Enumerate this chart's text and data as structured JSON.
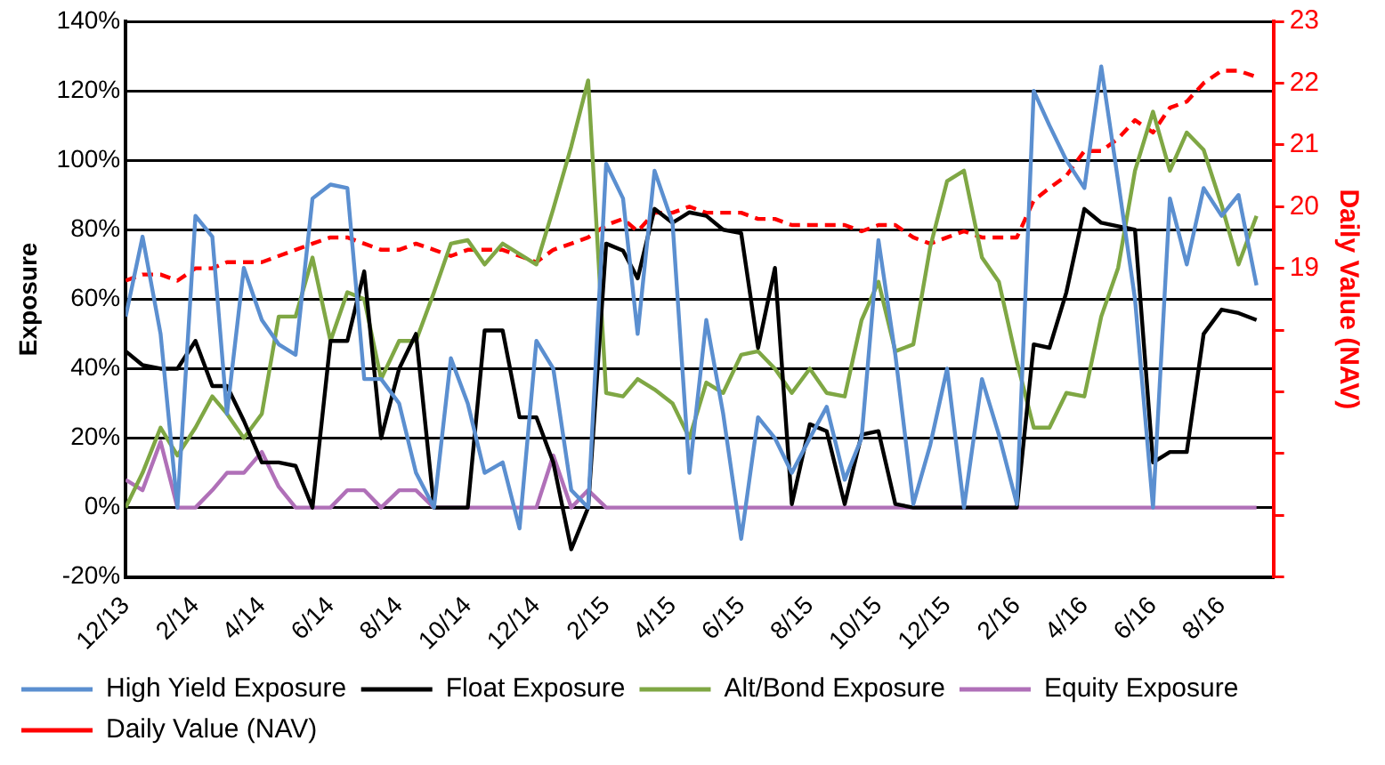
{
  "chart_data": {
    "type": "line",
    "ylabel": "Exposure",
    "y2label": "Daily Value (NAV)",
    "marker": "none",
    "grid": "y",
    "legend": "bottom",
    "x": [
      "2013-12-01",
      "2013-12-16",
      "2014-01-01",
      "2014-01-16",
      "2014-02-01",
      "2014-02-16",
      "2014-03-01",
      "2014-03-16",
      "2014-04-01",
      "2014-04-16",
      "2014-05-01",
      "2014-05-16",
      "2014-06-01",
      "2014-06-16",
      "2014-07-01",
      "2014-07-16",
      "2014-08-01",
      "2014-08-16",
      "2014-09-01",
      "2014-09-16",
      "2014-10-01",
      "2014-10-16",
      "2014-11-01",
      "2014-11-16",
      "2014-12-01",
      "2014-12-16",
      "2015-01-01",
      "2015-01-16",
      "2015-02-01",
      "2015-02-16",
      "2015-03-01",
      "2015-03-16",
      "2015-04-01",
      "2015-04-16",
      "2015-05-01",
      "2015-05-16",
      "2015-06-01",
      "2015-06-16",
      "2015-07-01",
      "2015-07-16",
      "2015-08-01",
      "2015-08-16",
      "2015-09-01",
      "2015-09-16",
      "2015-10-01",
      "2015-10-16",
      "2015-11-01",
      "2015-11-16",
      "2015-12-01",
      "2015-12-16",
      "2016-01-01",
      "2016-01-16",
      "2016-02-01",
      "2016-02-16",
      "2016-03-01",
      "2016-03-16",
      "2016-04-01",
      "2016-04-16",
      "2016-05-01",
      "2016-05-16",
      "2016-06-01",
      "2016-06-16",
      "2016-07-01",
      "2016-07-16",
      "2016-08-01",
      "2016-08-16",
      "2016-09-01"
    ],
    "xlim": [
      "2013-12-01",
      "2016-09-16"
    ],
    "xticks": [
      {
        "value": "2013-12-01",
        "label": "12/13"
      },
      {
        "value": "2014-02-01",
        "label": "2/14"
      },
      {
        "value": "2014-04-01",
        "label": "4/14"
      },
      {
        "value": "2014-06-01",
        "label": "6/14"
      },
      {
        "value": "2014-08-01",
        "label": "8/14"
      },
      {
        "value": "2014-10-01",
        "label": "10/14"
      },
      {
        "value": "2014-12-01",
        "label": "12/14"
      },
      {
        "value": "2015-02-01",
        "label": "2/15"
      },
      {
        "value": "2015-04-01",
        "label": "4/15"
      },
      {
        "value": "2015-06-01",
        "label": "6/15"
      },
      {
        "value": "2015-08-01",
        "label": "8/15"
      },
      {
        "value": "2015-10-01",
        "label": "10/15"
      },
      {
        "value": "2015-12-01",
        "label": "12/15"
      },
      {
        "value": "2016-02-01",
        "label": "2/16"
      },
      {
        "value": "2016-04-01",
        "label": "4/16"
      },
      {
        "value": "2016-06-01",
        "label": "6/16"
      },
      {
        "value": "2016-08-01",
        "label": "8/16"
      }
    ],
    "ylim": [
      -20,
      140
    ],
    "yticks": [
      {
        "value": -20,
        "label": "-20%"
      },
      {
        "value": 0,
        "label": "0%"
      },
      {
        "value": 20,
        "label": "20%"
      },
      {
        "value": 40,
        "label": "40%"
      },
      {
        "value": 60,
        "label": "60%"
      },
      {
        "value": 80,
        "label": "80%"
      },
      {
        "value": 100,
        "label": "100%"
      },
      {
        "value": 120,
        "label": "120%"
      },
      {
        "value": 140,
        "label": "140%"
      }
    ],
    "y2lim": [
      14,
      23
    ],
    "y2ticks": [
      {
        "value": 14,
        "label": null
      },
      {
        "value": 15,
        "label": null
      },
      {
        "value": 16,
        "label": null
      },
      {
        "value": 17,
        "label": null
      },
      {
        "value": 18,
        "label": null
      },
      19,
      20,
      21,
      22,
      23
    ],
    "series": [
      {
        "name": "High Yield Exposure",
        "color": "#5b8fd0",
        "values": [
          55,
          78,
          50,
          0,
          84,
          78,
          27,
          69,
          54,
          47,
          44,
          89,
          93,
          92,
          37,
          37,
          30,
          10,
          0,
          43,
          30,
          10,
          13,
          -6,
          48,
          40,
          5,
          0,
          99,
          89,
          50,
          97,
          82,
          10,
          54,
          27,
          -9,
          26,
          20,
          10,
          20,
          29,
          8,
          20,
          77,
          44,
          1,
          18,
          40,
          0,
          37,
          21,
          1,
          120,
          110,
          100,
          92,
          127,
          94,
          60,
          0,
          89,
          70,
          92,
          84,
          90,
          64
        ]
      },
      {
        "name": "Float Exposure",
        "color": "#000000",
        "values": [
          45,
          41,
          40,
          40,
          48,
          35,
          35,
          25,
          13,
          13,
          12,
          0,
          48,
          48,
          68,
          20,
          40,
          50,
          0,
          0,
          0,
          51,
          51,
          26,
          26,
          13,
          -12,
          0,
          76,
          74,
          66,
          86,
          82,
          85,
          84,
          80,
          79,
          46,
          69,
          1,
          24,
          22,
          1,
          21,
          22,
          1,
          0,
          0,
          0,
          0,
          0,
          0,
          0,
          47,
          46,
          62,
          86,
          82,
          81,
          80,
          13,
          16,
          16,
          50,
          57,
          56,
          54
        ]
      },
      {
        "name": "Alt/Bond Exposure",
        "color": "#7fa744",
        "values": [
          0,
          10,
          23,
          15,
          23,
          32,
          27,
          20,
          27,
          55,
          55,
          72,
          48,
          62,
          60,
          37,
          48,
          48,
          62,
          76,
          77,
          70,
          76,
          73,
          70,
          86,
          104,
          123,
          33,
          32,
          37,
          34,
          30,
          20,
          36,
          33,
          44,
          45,
          40,
          33,
          40,
          33,
          32,
          54,
          65,
          45,
          47,
          75,
          94,
          97,
          72,
          65,
          42,
          23,
          23,
          33,
          32,
          55,
          69,
          97,
          114,
          97,
          108,
          103,
          87,
          70,
          84
        ]
      },
      {
        "name": "Equity Exposure",
        "color": "#b070b8",
        "values": [
          8,
          5,
          19,
          0,
          0,
          5,
          10,
          10,
          16,
          6,
          0,
          0,
          0,
          5,
          5,
          0,
          5,
          5,
          0,
          0,
          0,
          0,
          0,
          0,
          0,
          15,
          0,
          5,
          0,
          0,
          0,
          0,
          0,
          0,
          0,
          0,
          0,
          0,
          0,
          0,
          0,
          0,
          0,
          0,
          0,
          0,
          0,
          0,
          0,
          0,
          0,
          0,
          0,
          0,
          0,
          0,
          0,
          0,
          0,
          0,
          0,
          0,
          0,
          0,
          0,
          0,
          0
        ]
      },
      {
        "name": "Daily Value (NAV)",
        "color": "#ff0000",
        "axis": "y2",
        "line_style": "dashed",
        "values": [
          18.8,
          18.9,
          18.9,
          18.8,
          19.0,
          19.0,
          19.1,
          19.1,
          19.1,
          19.2,
          19.3,
          19.4,
          19.5,
          19.5,
          19.4,
          19.3,
          19.3,
          19.4,
          19.3,
          19.2,
          19.3,
          19.3,
          19.3,
          19.2,
          19.1,
          19.3,
          19.4,
          19.5,
          19.7,
          19.8,
          19.6,
          19.9,
          19.9,
          20.0,
          19.9,
          19.9,
          19.9,
          19.8,
          19.8,
          19.7,
          19.7,
          19.7,
          19.7,
          19.6,
          19.7,
          19.7,
          19.5,
          19.4,
          19.5,
          19.6,
          19.5,
          19.5,
          19.5,
          20.1,
          20.3,
          20.5,
          20.9,
          20.9,
          21.1,
          21.4,
          21.2,
          21.6,
          21.7,
          22.0,
          22.2,
          22.2,
          22.1
        ]
      }
    ]
  }
}
